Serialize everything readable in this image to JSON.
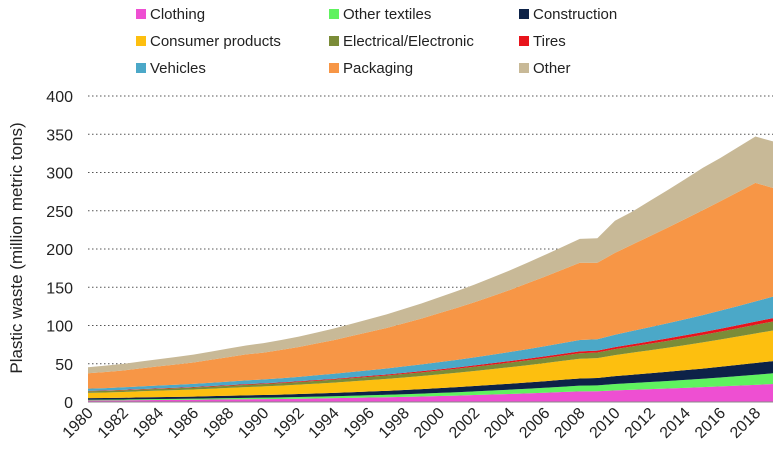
{
  "chart_data": {
    "type": "area",
    "stacked": true,
    "title": "",
    "xlabel": "",
    "ylabel": "Plastic waste (million metric tons)",
    "ylim": [
      0,
      400
    ],
    "yticks": [
      0,
      50,
      100,
      150,
      200,
      250,
      300,
      350,
      400
    ],
    "grid": "horizontal dotted",
    "legend_position": "top",
    "x": [
      1980,
      1981,
      1982,
      1983,
      1984,
      1985,
      1986,
      1987,
      1988,
      1989,
      1990,
      1991,
      1992,
      1993,
      1994,
      1995,
      1996,
      1997,
      1998,
      1999,
      2000,
      2001,
      2002,
      2003,
      2004,
      2005,
      2006,
      2007,
      2008,
      2009,
      2010,
      2011,
      2012,
      2013,
      2014,
      2015,
      2016,
      2017,
      2018,
      2019
    ],
    "xtick_labels": [
      "1980",
      "1982",
      "1984",
      "1986",
      "1988",
      "1990",
      "1992",
      "1994",
      "1996",
      "1998",
      "2000",
      "2002",
      "2004",
      "2006",
      "2008",
      "2010",
      "2012",
      "2014",
      "2016",
      "2018"
    ],
    "series": [
      {
        "name": "Clothing",
        "color": "#ee4fd2",
        "values": [
          2.0,
          2.1,
          2.2,
          2.4,
          2.6,
          2.7,
          2.9,
          3.2,
          3.4,
          3.6,
          3.8,
          4.0,
          4.3,
          4.6,
          5.0,
          5.4,
          5.8,
          6.2,
          6.7,
          7.2,
          7.8,
          8.4,
          9.1,
          9.8,
          10.5,
          11.3,
          12.1,
          13.0,
          13.9,
          14.1,
          15.2,
          16.0,
          16.8,
          17.6,
          18.5,
          19.4,
          20.4,
          21.4,
          22.4,
          23.5
        ]
      },
      {
        "name": "Other textiles",
        "color": "#5ff25f",
        "values": [
          1.0,
          1.0,
          1.1,
          1.2,
          1.3,
          1.4,
          1.5,
          1.6,
          1.7,
          1.8,
          1.9,
          2.0,
          2.2,
          2.4,
          2.6,
          2.8,
          3.0,
          3.2,
          3.5,
          3.8,
          4.1,
          4.4,
          4.8,
          5.2,
          5.6,
          6.0,
          6.5,
          7.0,
          7.5,
          7.7,
          8.3,
          8.8,
          9.3,
          9.8,
          10.4,
          11.0,
          11.7,
          12.4,
          13.2,
          14.0
        ]
      },
      {
        "name": "Construction",
        "color": "#0d2248",
        "values": [
          2.0,
          2.1,
          2.2,
          2.4,
          2.5,
          2.6,
          2.7,
          2.9,
          3.1,
          3.3,
          3.5,
          3.7,
          3.9,
          4.1,
          4.3,
          4.6,
          4.9,
          5.2,
          5.5,
          5.8,
          6.2,
          6.6,
          7.0,
          7.4,
          7.8,
          8.2,
          8.6,
          9.0,
          9.4,
          9.6,
          10.3,
          10.9,
          11.5,
          12.1,
          12.7,
          13.3,
          14.0,
          14.7,
          15.4,
          16.0
        ]
      },
      {
        "name": "Consumer products",
        "color": "#fdbf0f",
        "values": [
          7.0,
          7.3,
          7.6,
          8.0,
          8.4,
          8.8,
          9.2,
          9.7,
          10.2,
          10.7,
          11.2,
          11.7,
          12.3,
          12.9,
          13.5,
          14.2,
          14.9,
          15.6,
          16.4,
          17.2,
          18.0,
          18.8,
          19.7,
          20.6,
          21.6,
          22.6,
          23.6,
          24.7,
          25.8,
          26.0,
          27.5,
          28.8,
          30.1,
          31.4,
          32.8,
          34.2,
          35.6,
          37.1,
          38.6,
          40.0
        ]
      },
      {
        "name": "Electrical/Electronic",
        "color": "#7b8c38",
        "values": [
          2.0,
          2.1,
          2.2,
          2.3,
          2.4,
          2.5,
          2.6,
          2.7,
          2.9,
          3.0,
          3.1,
          3.2,
          3.4,
          3.6,
          3.8,
          4.0,
          4.2,
          4.4,
          4.6,
          4.8,
          5.0,
          5.2,
          5.4,
          5.7,
          6.0,
          6.3,
          6.6,
          6.9,
          7.2,
          7.3,
          7.8,
          8.2,
          8.6,
          9.0,
          9.4,
          9.8,
          10.3,
          10.8,
          11.3,
          11.8
        ]
      },
      {
        "name": "Tires",
        "color": "#e8141c",
        "values": [
          0.5,
          0.5,
          0.6,
          0.6,
          0.6,
          0.7,
          0.7,
          0.8,
          0.8,
          0.9,
          0.9,
          1.0,
          1.0,
          1.1,
          1.1,
          1.2,
          1.3,
          1.3,
          1.4,
          1.5,
          1.6,
          1.7,
          1.8,
          1.9,
          2.0,
          2.1,
          2.2,
          2.3,
          2.4,
          2.4,
          2.6,
          2.8,
          3.0,
          3.2,
          3.4,
          3.6,
          3.8,
          4.0,
          4.2,
          4.4
        ]
      },
      {
        "name": "Vehicles",
        "color": "#4ba8c8",
        "values": [
          3.0,
          3.1,
          3.3,
          3.5,
          3.7,
          3.9,
          4.1,
          4.3,
          4.6,
          4.9,
          5.2,
          5.5,
          5.8,
          6.2,
          6.6,
          7.0,
          7.4,
          7.9,
          8.4,
          8.9,
          9.4,
          10.0,
          10.6,
          11.2,
          11.8,
          12.5,
          13.2,
          14.0,
          14.8,
          15.0,
          16.2,
          17.4,
          18.6,
          19.8,
          21.0,
          22.3,
          23.6,
          25.0,
          26.4,
          28.0
        ]
      },
      {
        "name": "Packaging",
        "color": "#f79646",
        "values": [
          20.0,
          21.0,
          22.0,
          23.5,
          25.0,
          26.5,
          28.0,
          30.0,
          32.0,
          34.0,
          35.0,
          37.0,
          39.0,
          41.5,
          44.0,
          47.0,
          50.0,
          53.0,
          56.5,
          60.0,
          64.0,
          68.0,
          72.0,
          76.5,
          81.0,
          86.0,
          91.0,
          96.0,
          101.0,
          100.0,
          107.0,
          113.0,
          119.0,
          125.0,
          131.0,
          137.0,
          143.0,
          149.0,
          155.0,
          142.0
        ]
      },
      {
        "name": "Other",
        "color": "#c8b997",
        "values": [
          8.0,
          8.3,
          8.6,
          9.0,
          9.4,
          9.8,
          10.2,
          10.7,
          11.2,
          11.7,
          12.3,
          12.9,
          13.6,
          14.3,
          15.1,
          15.9,
          16.8,
          17.7,
          18.7,
          19.7,
          20.8,
          21.9,
          23.1,
          24.3,
          25.6,
          26.9,
          28.3,
          29.7,
          31.2,
          32.0,
          42.0,
          43.1,
          46.1,
          49.1,
          52.2,
          55.4,
          56.6,
          58.6,
          60.5,
          61.0
        ]
      }
    ]
  }
}
